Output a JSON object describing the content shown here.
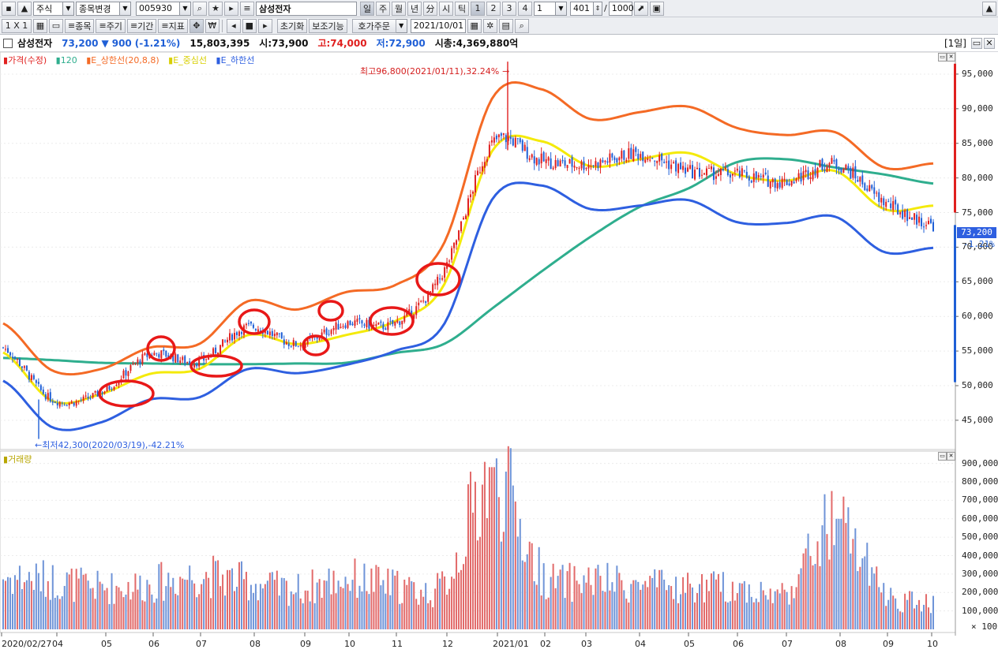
{
  "toolbar1": {
    "market": "주식",
    "change_item": "종목변경",
    "code": "005930",
    "name": "삼성전자",
    "periods": [
      "일",
      "주",
      "월",
      "년",
      "分",
      "시",
      "틱"
    ],
    "nums": [
      "1",
      "2",
      "3",
      "4"
    ],
    "period_value": "1",
    "count": "401",
    "slash": "/",
    "total": "1000"
  },
  "toolbar2": {
    "layout": "1 X 1",
    "item_label": "종목",
    "period_label": "주기",
    "range_label": "기간",
    "indicator_label": "지표",
    "currency_glyph": "₩",
    "reset": "초기화",
    "aux": "보조기능",
    "order": "호가주문",
    "date": "2021/10/01"
  },
  "info": {
    "name": "삼성전자",
    "price": "73,200",
    "arrow": "▼",
    "change": "900",
    "pct": "(-1.21%)",
    "volume": "15,803,395",
    "open_label": "시:",
    "open": "73,900",
    "high_label": "고:",
    "high": "74,000",
    "low_label": "저:",
    "low": "72,900",
    "mcap_label": "시총:",
    "mcap": "4,369,880억",
    "period_tag": "[1일]"
  },
  "legend": {
    "price": "가격(수정)",
    "ma": "120",
    "upper": "E_상한선(20,8,8)",
    "mid": "E_중심선",
    "lower": "E_하한선",
    "volume": "거래량"
  },
  "annotations": {
    "high": "최고96,800(2021/01/11),32.24%",
    "low": "최저42,300(2020/03/19),-42.21%"
  },
  "price_axis": {
    "labels": [
      "95,000",
      "90,000",
      "85,000",
      "80,000",
      "75,000",
      "70,000",
      "65,000",
      "60,000",
      "55,000",
      "50,000",
      "45,000"
    ],
    "current": "73,200",
    "current_pct": "-1.21%"
  },
  "volume_axis": {
    "labels": [
      "900,000",
      "800,000",
      "700,000",
      "600,000",
      "500,000",
      "400,000",
      "300,000",
      "200,000",
      "100,000"
    ],
    "unit": "× 100"
  },
  "x_axis": [
    "2020/02/27",
    "04",
    "05",
    "06",
    "07",
    "08",
    "09",
    "10",
    "11",
    "12",
    "2021/01",
    "02",
    "03",
    "04",
    "05",
    "06",
    "07",
    "08",
    "09",
    "10"
  ],
  "colors": {
    "up": "#e0201f",
    "down": "#1f5fd6",
    "upper": "#f46a25",
    "mid": "#f4ea0a",
    "lower": "#2e5fe0",
    "ma120": "#2fae8e",
    "highlight": "#e81818"
  },
  "chart_data": {
    "type": "line",
    "xlabel": "",
    "ylabel": "",
    "ylim": [
      41000,
      97500
    ],
    "x": [
      "2020/02/27",
      "2020/04",
      "2020/05",
      "2020/06",
      "2020/07",
      "2020/08",
      "2020/09",
      "2020/10",
      "2020/11",
      "2020/12",
      "2021/01",
      "2021/02",
      "2021/03",
      "2021/04",
      "2021/05",
      "2021/06",
      "2021/07",
      "2021/08",
      "2021/09",
      "2021/10"
    ],
    "series": [
      {
        "name": "가격(수정)",
        "values": [
          55500,
          48000,
          49000,
          54500,
          53500,
          58500,
          56000,
          59000,
          59000,
          66500,
          85000,
          82500,
          82000,
          83500,
          81000,
          80500,
          79500,
          82000,
          76500,
          73200
        ]
      },
      {
        "name": "120",
        "values": [
          54000,
          53700,
          53300,
          53200,
          53100,
          53100,
          53200,
          53300,
          54700,
          56000,
          61200,
          66500,
          71500,
          75800,
          78500,
          82300,
          82700,
          81500,
          80500,
          79200
        ]
      },
      {
        "name": "E_상한선(20,8,8)",
        "values": [
          59000,
          52200,
          52400,
          55500,
          56000,
          62200,
          61000,
          63500,
          64500,
          70500,
          91600,
          92800,
          88500,
          89500,
          90300,
          87200,
          86200,
          86600,
          81500,
          82100
        ]
      },
      {
        "name": "E_중심선",
        "values": [
          54800,
          47800,
          48800,
          51700,
          52400,
          57300,
          56000,
          57300,
          59300,
          64500,
          84000,
          85300,
          81700,
          82700,
          83600,
          80500,
          79600,
          81000,
          75500,
          76000
        ]
      },
      {
        "name": "E_하한선",
        "values": [
          50700,
          44000,
          44700,
          48000,
          48300,
          52400,
          51800,
          53000,
          55000,
          58800,
          77000,
          78900,
          75500,
          76000,
          76800,
          73600,
          73500,
          74400,
          69300,
          69900
        ]
      }
    ],
    "volume": [
      300000,
      280000,
      240000,
      260000,
      310000,
      270000,
      230000,
      290000,
      250000,
      260000,
      880000,
      320000,
      280000,
      250000,
      240000,
      240000,
      220000,
      600000,
      210000,
      160000
    ],
    "annotations": [
      {
        "text": "최고96,800(2021/01/11),32.24%",
        "x": "2021/01/11",
        "y": 96800
      },
      {
        "text": "최저42,300(2020/03/19),-42.21%",
        "x": "2020/03/19",
        "y": 42300
      }
    ],
    "grid": true,
    "legend": "top-left"
  }
}
